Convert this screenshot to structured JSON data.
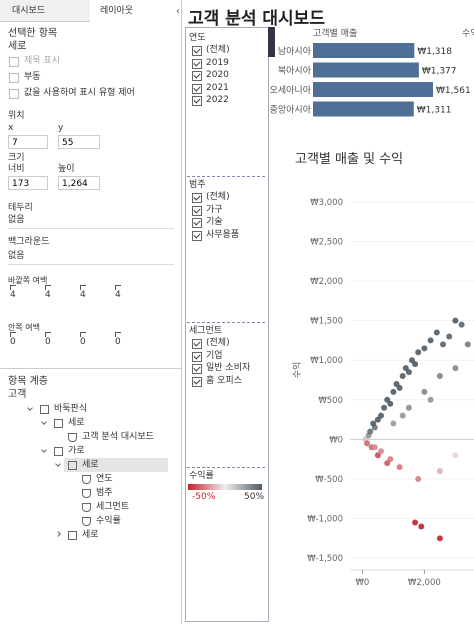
{
  "left_panel": {
    "tabs": [
      "대시보드",
      "레이아웃"
    ],
    "selected_heading": "선택한 항목",
    "selected_item": "세로",
    "options": [
      "제목 표시",
      "부동",
      "값을 사용하여 표시 유형 제어"
    ],
    "position": {
      "label": "위치",
      "x_label": "x",
      "y_label": "y",
      "x": "7",
      "y": "55"
    },
    "size": {
      "label": "크기",
      "width_label": "너비",
      "height_label": "높이",
      "width": "173",
      "height": "1,264"
    },
    "border": {
      "label": "테두리",
      "value": "없음"
    },
    "background": {
      "label": "백그라운드",
      "value": "없음"
    },
    "outer_padding": {
      "label": "바깥쪽 여백",
      "values": [
        "4",
        "4",
        "4",
        "4"
      ]
    },
    "inner_padding": {
      "label": "안쪽 여백",
      "values": [
        "0",
        "0",
        "0",
        "0"
      ]
    },
    "hierarchy": {
      "label": "항목 계층",
      "root": "고객",
      "tree": {
        "label": "바둑판식",
        "children": [
          {
            "label": "세로",
            "children": [
              {
                "label": "고객 분석 대시보드"
              }
            ]
          },
          {
            "label": "가로",
            "children": [
              {
                "label": "세로",
                "children": [
                  {
                    "label": "연도"
                  },
                  {
                    "label": "범주"
                  },
                  {
                    "label": "세그먼트"
                  },
                  {
                    "label": "수익률"
                  }
                ]
              },
              {
                "label": "세로",
                "children": []
              }
            ]
          }
        ]
      }
    }
  },
  "filters": [
    {
      "title": "연도",
      "items": [
        "(전체)",
        "2019",
        "2020",
        "2021",
        "2022"
      ]
    },
    {
      "title": "범주",
      "items": [
        "(전체)",
        "가구",
        "기술",
        "사무용품"
      ]
    },
    {
      "title": "세그먼트",
      "items": [
        "(전체)",
        "기업",
        "일반 소비자",
        "홈 오피스"
      ]
    }
  ],
  "legend": {
    "title": "수익률",
    "min_label": "-50%",
    "max_label": "50%"
  },
  "dashboard": {
    "title": "고객 분석 대시보드",
    "bar_chart": {
      "title": "고객별 매출",
      "categories": [
        "남아시아",
        "북아시아",
        "오세아니아",
        "중앙아시아"
      ],
      "values": [
        1318,
        1377,
        1561,
        1311
      ],
      "value_labels": [
        "₩1,318",
        "₩1,377",
        "₩1,561",
        "₩1,311"
      ]
    },
    "second_chart_title": "수익",
    "scatter": {
      "type": "scatter",
      "title": "고객별 매출 및 수익",
      "y_label": "수익",
      "x": [
        100,
        200,
        300,
        150,
        400,
        500,
        600,
        700,
        800,
        900,
        1000,
        1100,
        1200,
        1300,
        1400,
        1500,
        1600,
        1700,
        1800,
        2000,
        2200,
        2400,
        2600,
        2800,
        3000,
        3200,
        3400,
        1000,
        1500,
        2000,
        2500,
        3000,
        500,
        800,
        1200,
        1800,
        2500,
        1700,
        1900,
        2500,
        3000,
        400,
        250,
        350,
        600,
        900,
        1300,
        2200
      ],
      "y": [
        0,
        50,
        -100,
        -50,
        150,
        250,
        300,
        400,
        500,
        450,
        600,
        700,
        650,
        800,
        900,
        850,
        1000,
        950,
        1100,
        1150,
        1250,
        1350,
        1200,
        1300,
        1500,
        1450,
        1200,
        200,
        400,
        600,
        800,
        900,
        -200,
        -300,
        -350,
        -500,
        -400,
        -1050,
        -1100,
        -1250,
        -200,
        -100,
        100,
        200,
        -150,
        -250,
        300,
        500
      ],
      "xlim": [
        -400,
        3600
      ],
      "ylim": [
        -1650,
        3150
      ],
      "xticks": [
        {
          "value": 0,
          "label": "₩0"
        },
        {
          "value": 2000,
          "label": "₩2,000"
        }
      ],
      "yticks": [
        {
          "value": 3000,
          "label": "₩3,000"
        },
        {
          "value": 2500,
          "label": "₩2,500"
        },
        {
          "value": 2000,
          "label": "₩2,000"
        },
        {
          "value": 1500,
          "label": "₩1,500"
        },
        {
          "value": 1000,
          "label": "₩1,000"
        },
        {
          "value": 500,
          "label": "₩500"
        },
        {
          "value": 0,
          "label": "₩0"
        },
        {
          "value": -500,
          "label": "₩-500"
        },
        {
          "value": -1000,
          "label": "₩-1,000"
        },
        {
          "value": -1500,
          "label": "₩-1,500"
        }
      ]
    }
  }
}
